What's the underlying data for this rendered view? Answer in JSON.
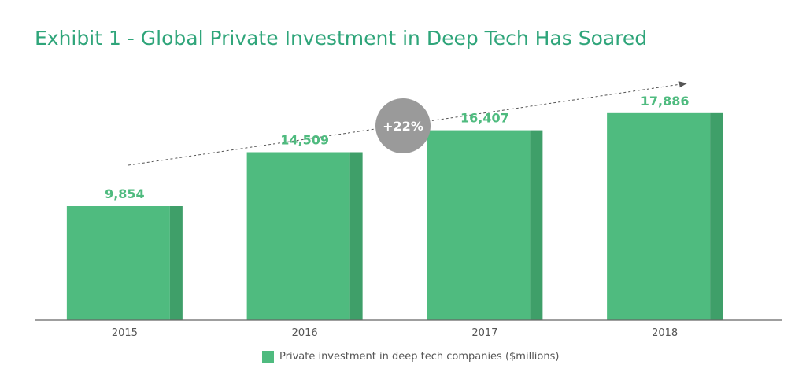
{
  "title": "Exhibit 1 - Global Private Investment in Deep Tech Has Soared",
  "colors": {
    "title": "#2fa57a",
    "bar_front": "#4fbb7f",
    "bar_side": "#3f9f69",
    "value_label": "#4fbb7f",
    "badge": "#9a9a9a",
    "axis": "#555555"
  },
  "growth_badge": {
    "text": "+22%"
  },
  "legend": {
    "label": "Private investment in deep tech companies ($millions)"
  },
  "chart_data": {
    "type": "bar",
    "categories": [
      "2015",
      "2016",
      "2017",
      "2018"
    ],
    "series": [
      {
        "name": "Private investment in deep tech companies ($millions)",
        "values": [
          9854,
          14509,
          16407,
          17886
        ]
      }
    ],
    "value_labels": [
      "9,854",
      "14,509",
      "16,407",
      "17,886"
    ],
    "ylim": [
      0,
      21000
    ],
    "annotation": "+22%",
    "grid": false,
    "legend_position": "bottom"
  }
}
